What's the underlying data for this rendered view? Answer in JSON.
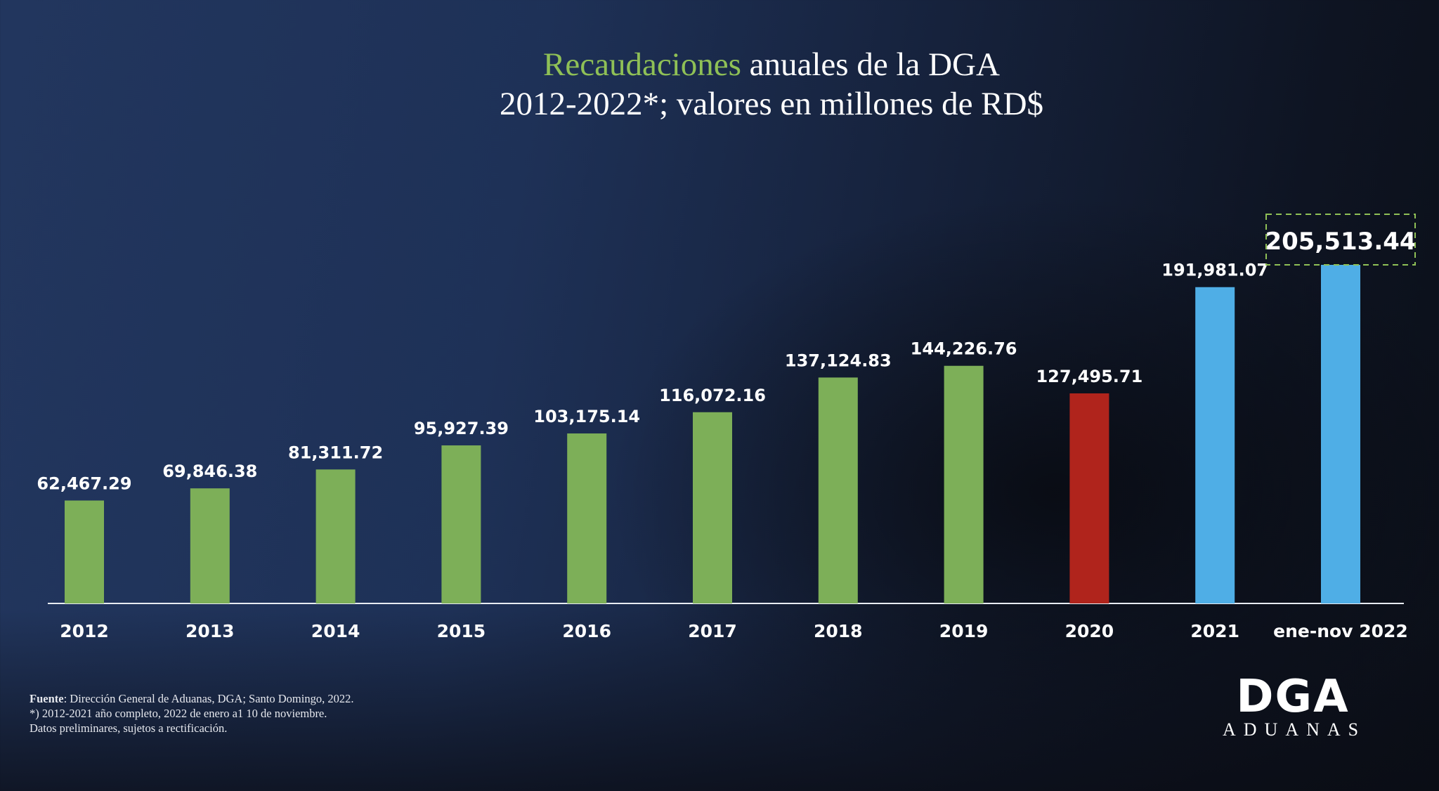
{
  "title": {
    "highlight": "Recaudaciones",
    "line1_rest": " anuales de la DGA",
    "line2": "2012-2022*; valores en millones de RD$"
  },
  "chart_data": {
    "type": "bar",
    "title": "Recaudaciones anuales de la DGA 2012-2022*; valores en millones de RD$",
    "xlabel": "",
    "ylabel": "millones de RD$",
    "ylim": [
      0,
      205513.44
    ],
    "grid": false,
    "categories": [
      "2012",
      "2013",
      "2014",
      "2015",
      "2016",
      "2017",
      "2018",
      "2019",
      "2020",
      "2021",
      "ene-nov 2022"
    ],
    "values": [
      62467.29,
      69846.38,
      81311.72,
      95927.39,
      103175.14,
      116072.16,
      137124.83,
      144226.76,
      127495.71,
      191981.07,
      205513.44
    ],
    "labels": [
      "62,467.29",
      "69,846.38",
      "81,311.72",
      "95,927.39",
      "103,175.14",
      "116,072.16",
      "137,124.83",
      "144,226.76",
      "127,495.71",
      "191,981.07",
      "205,513.44"
    ],
    "colors": [
      "#7daf58",
      "#7daf58",
      "#7daf58",
      "#7daf58",
      "#7daf58",
      "#7daf58",
      "#7daf58",
      "#7daf58",
      "#b0241c",
      "#4faee6",
      "#4faee6"
    ],
    "highlight_index": 10,
    "highlight_border": "#8fc056"
  },
  "footer": {
    "source_label": "Fuente",
    "source_text": ": Dirección General de Aduanas, DGA; Santo Domingo, 2022.",
    "note1": "*) 2012-2021 año completo, 2022 de enero a1 10 de noviembre.",
    "note2": "Datos preliminares, sujetos a rectificación."
  },
  "logo": {
    "mark": "DGA",
    "sub": "ADUANAS"
  }
}
